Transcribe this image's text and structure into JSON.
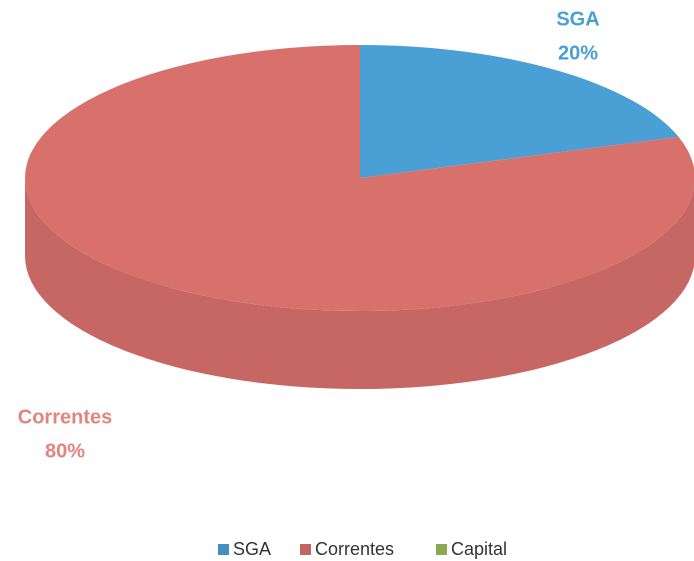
{
  "chart_data": {
    "type": "pie",
    "categories": [
      "SGA",
      "Correntes",
      "Capital"
    ],
    "values": [
      20,
      80,
      0
    ],
    "value_labels": [
      "20%",
      "80%",
      null
    ],
    "colors": [
      "#4a9fd4",
      "#d8706c",
      "#9bbb59"
    ],
    "legend": "bottom"
  }
}
